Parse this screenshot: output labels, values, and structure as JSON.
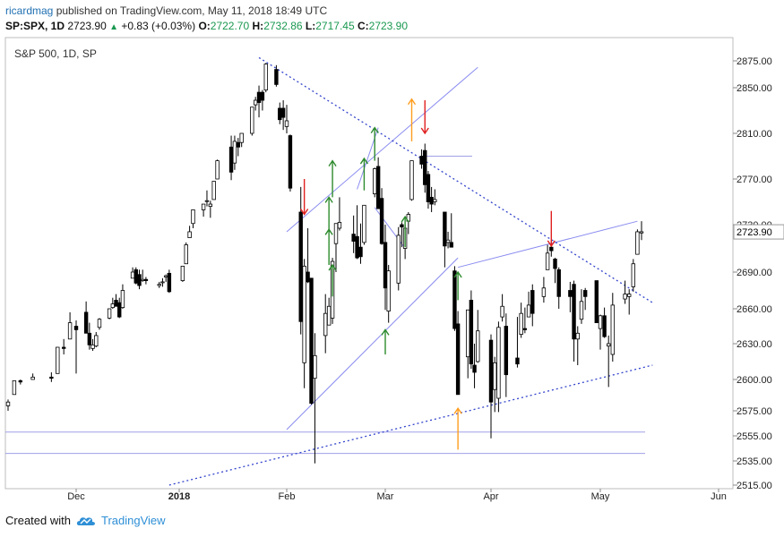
{
  "header": {
    "author": "ricardmag",
    "published": "published on TradingView.com, May 11, 2018 18:49 UTC"
  },
  "quote": {
    "symbol": "SP:SPX, 1D",
    "last": "2723.90",
    "change": "+0.83 (+0.03%)",
    "o_label": "O:",
    "o": "2722.70",
    "h_label": "H:",
    "h": "2732.86",
    "l_label": "L:",
    "l": "2717.45",
    "c_label": "C:",
    "c": "2723.90"
  },
  "footer": {
    "created_with": "Created with",
    "brand": "TradingView"
  },
  "colors": {
    "up_body": "#ffffff",
    "down_body": "#000000",
    "candle_edge": "#000000",
    "trend": "#3344cc",
    "channel": "#8a8cf0",
    "hline": "#a0a0e8",
    "arrow_up": "#2e8b2e",
    "arrow_down": "#e02020",
    "arrow_orange": "#ff9d1e",
    "grid": "#d6d6d6",
    "price_tag": "#ffffff"
  },
  "chart_data": {
    "type": "candlestick",
    "title": "S&P 500, 1D, SP",
    "ylim": [
      2515,
      2895
    ],
    "y_ticks": [
      2875,
      2850,
      2810,
      2770,
      2730,
      2690,
      2660,
      2630,
      2600,
      2575,
      2555,
      2535,
      2515
    ],
    "y_tick_labels": [
      "2875.00",
      "2850.00",
      "2810.00",
      "2770.00",
      "2730.00",
      "2690.00",
      "2660.00",
      "2630.00",
      "2600.00",
      "2575.00",
      "2555.00",
      "2535.00",
      "2515.00"
    ],
    "x_ticks": [
      {
        "label": "Dec",
        "date": "2017-12-01"
      },
      {
        "label": "2018",
        "date": "2018-01-01",
        "bold": true
      },
      {
        "label": "Feb",
        "date": "2018-02-01"
      },
      {
        "label": "Mar",
        "date": "2018-03-01"
      },
      {
        "label": "Apr",
        "date": "2018-04-02"
      },
      {
        "label": "May",
        "date": "2018-05-01"
      },
      {
        "label": "Jun",
        "date": "2018-06-01"
      }
    ],
    "last_price": "2723.90",
    "candles": [
      [
        "2017-11-20",
        2579,
        2584,
        2575,
        2582
      ],
      [
        "2017-11-21",
        2588,
        2599,
        2588,
        2599
      ],
      [
        "2017-11-22",
        2599,
        2600,
        2596,
        2598
      ],
      [
        "2017-11-24",
        2600,
        2605,
        2600,
        2602
      ],
      [
        "2017-11-27",
        2602,
        2606,
        2598,
        2601
      ],
      [
        "2017-11-28",
        2605,
        2627,
        2605,
        2627
      ],
      [
        "2017-11-29",
        2627,
        2634,
        2621,
        2626
      ],
      [
        "2017-11-30",
        2634,
        2657,
        2634,
        2648
      ],
      [
        "2017-12-01",
        2645,
        2650,
        2605,
        2642
      ],
      [
        "2017-12-04",
        2657,
        2666,
        2639,
        2639
      ],
      [
        "2017-12-05",
        2639,
        2648,
        2625,
        2629
      ],
      [
        "2017-12-06",
        2626,
        2634,
        2624,
        2629
      ],
      [
        "2017-12-07",
        2628,
        2640,
        2627,
        2637
      ],
      [
        "2017-12-08",
        2644,
        2652,
        2642,
        2651
      ],
      [
        "2017-12-11",
        2652,
        2660,
        2651,
        2660
      ],
      [
        "2017-12-12",
        2661,
        2669,
        2660,
        2664
      ],
      [
        "2017-12-13",
        2667,
        2672,
        2662,
        2662
      ],
      [
        "2017-12-14",
        2665,
        2669,
        2652,
        2653
      ],
      [
        "2017-12-15",
        2661,
        2680,
        2660,
        2675
      ],
      [
        "2017-12-18",
        2685,
        2694,
        2685,
        2690
      ],
      [
        "2017-12-19",
        2692,
        2694,
        2680,
        2681
      ],
      [
        "2017-12-20",
        2688,
        2692,
        2676,
        2679
      ],
      [
        "2017-12-21",
        2683,
        2692,
        2682,
        2684
      ],
      [
        "2017-12-22",
        2684,
        2686,
        2680,
        2683
      ],
      [
        "2017-12-26",
        2679,
        2682,
        2677,
        2680
      ],
      [
        "2017-12-27",
        2682,
        2685,
        2678,
        2682
      ],
      [
        "2017-12-28",
        2686,
        2688,
        2682,
        2687
      ],
      [
        "2017-12-29",
        2689,
        2692,
        2673,
        2674
      ],
      [
        "2018-01-02",
        2683,
        2695,
        2682,
        2695
      ],
      [
        "2018-01-03",
        2697,
        2715,
        2697,
        2713
      ],
      [
        "2018-01-04",
        2719,
        2729,
        2719,
        2724
      ],
      [
        "2018-01-05",
        2731,
        2743,
        2727,
        2743
      ],
      [
        "2018-01-08",
        2743,
        2748,
        2737,
        2748
      ],
      [
        "2018-01-09",
        2751,
        2760,
        2746,
        2751
      ],
      [
        "2018-01-10",
        2746,
        2751,
        2736,
        2748
      ],
      [
        "2018-01-11",
        2752,
        2768,
        2752,
        2768
      ],
      [
        "2018-01-12",
        2770,
        2787,
        2770,
        2786
      ],
      [
        "2018-01-16",
        2798,
        2808,
        2769,
        2776
      ],
      [
        "2018-01-17",
        2784,
        2808,
        2778,
        2803
      ],
      [
        "2018-01-18",
        2802,
        2806,
        2790,
        2798
      ],
      [
        "2018-01-19",
        2802,
        2810,
        2798,
        2810
      ],
      [
        "2018-01-22",
        2810,
        2833,
        2808,
        2833
      ],
      [
        "2018-01-23",
        2835,
        2842,
        2830,
        2839
      ],
      [
        "2018-01-24",
        2846,
        2852,
        2824,
        2837
      ],
      [
        "2018-01-25",
        2846,
        2848,
        2830,
        2839
      ],
      [
        "2018-01-26",
        2848,
        2873,
        2846,
        2872
      ],
      [
        "2018-01-29",
        2867,
        2871,
        2851,
        2853
      ],
      [
        "2018-01-30",
        2832,
        2837,
        2818,
        2822
      ],
      [
        "2018-01-31",
        2832,
        2839,
        2813,
        2824
      ],
      [
        "2018-02-01",
        2816,
        2835,
        2810,
        2821
      ],
      [
        "2018-02-02",
        2808,
        2809,
        2759,
        2762
      ],
      [
        "2018-02-05",
        2741,
        2763,
        2638,
        2649
      ],
      [
        "2018-02-06",
        2614,
        2701,
        2593,
        2695
      ],
      [
        "2018-02-07",
        2690,
        2727,
        2681,
        2682
      ],
      [
        "2018-02-08",
        2685,
        2685,
        2580,
        2581
      ],
      [
        "2018-02-09",
        2601,
        2639,
        2533,
        2620
      ],
      [
        "2018-02-12",
        2637,
        2672,
        2622,
        2656
      ],
      [
        "2018-02-13",
        2646,
        2669,
        2646,
        2662
      ],
      [
        "2018-02-14",
        2652,
        2702,
        2647,
        2699
      ],
      [
        "2018-02-15",
        2714,
        2731,
        2690,
        2731
      ],
      [
        "2018-02-16",
        2727,
        2754,
        2725,
        2732
      ],
      [
        "2018-02-20",
        2722,
        2738,
        2706,
        2716
      ],
      [
        "2018-02-21",
        2720,
        2747,
        2701,
        2702
      ],
      [
        "2018-02-22",
        2711,
        2731,
        2697,
        2703
      ],
      [
        "2018-02-23",
        2715,
        2747,
        2713,
        2747
      ],
      [
        "2018-02-26",
        2757,
        2780,
        2754,
        2779
      ],
      [
        "2018-02-27",
        2781,
        2789,
        2744,
        2744
      ],
      [
        "2018-02-28",
        2753,
        2762,
        2713,
        2714
      ],
      [
        "2018-03-01",
        2715,
        2730,
        2659,
        2677
      ],
      [
        "2018-03-02",
        2658,
        2696,
        2648,
        2691
      ],
      [
        "2018-03-05",
        2681,
        2728,
        2675,
        2721
      ],
      [
        "2018-03-06",
        2730,
        2732,
        2711,
        2728
      ],
      [
        "2018-03-07",
        2710,
        2730,
        2701,
        2727
      ],
      [
        "2018-03-08",
        2733,
        2741,
        2722,
        2739
      ],
      [
        "2018-03-09",
        2752,
        2786,
        2751,
        2786
      ],
      [
        "2018-03-12",
        2790,
        2796,
        2779,
        2783
      ],
      [
        "2018-03-13",
        2795,
        2801,
        2758,
        2765
      ],
      [
        "2018-03-14",
        2774,
        2777,
        2744,
        2750
      ],
      [
        "2018-03-15",
        2754,
        2763,
        2741,
        2748
      ],
      [
        "2018-03-16",
        2750,
        2761,
        2747,
        2752
      ],
      [
        "2018-03-19",
        2741,
        2741,
        2694,
        2712
      ],
      [
        "2018-03-20",
        2715,
        2724,
        2710,
        2717
      ],
      [
        "2018-03-21",
        2715,
        2740,
        2711,
        2711
      ],
      [
        "2018-03-22",
        2691,
        2695,
        2641,
        2643
      ],
      [
        "2018-03-23",
        2647,
        2658,
        2588,
        2588
      ],
      [
        "2018-03-26",
        2619,
        2659,
        2601,
        2659
      ],
      [
        "2018-03-27",
        2667,
        2675,
        2609,
        2613
      ],
      [
        "2018-03-28",
        2612,
        2630,
        2593,
        2606
      ],
      [
        "2018-03-29",
        2615,
        2659,
        2614,
        2641
      ],
      [
        "2018-04-02",
        2633,
        2638,
        2553,
        2582
      ],
      [
        "2018-04-03",
        2592,
        2619,
        2574,
        2614
      ],
      [
        "2018-04-04",
        2585,
        2649,
        2574,
        2644
      ],
      [
        "2018-04-05",
        2653,
        2672,
        2649,
        2662
      ],
      [
        "2018-04-06",
        2645,
        2656,
        2586,
        2604
      ],
      [
        "2018-04-09",
        2618,
        2653,
        2610,
        2613
      ],
      [
        "2018-04-10",
        2638,
        2665,
        2635,
        2656
      ],
      [
        "2018-04-11",
        2643,
        2661,
        2639,
        2642
      ],
      [
        "2018-04-12",
        2653,
        2674,
        2653,
        2663
      ],
      [
        "2018-04-13",
        2675,
        2680,
        2645,
        2656
      ],
      [
        "2018-04-16",
        2670,
        2686,
        2665,
        2677
      ],
      [
        "2018-04-17",
        2692,
        2713,
        2692,
        2706
      ],
      [
        "2018-04-18",
        2711,
        2717,
        2703,
        2708
      ],
      [
        "2018-04-19",
        2701,
        2702,
        2681,
        2693
      ],
      [
        "2018-04-20",
        2692,
        2694,
        2660,
        2670
      ],
      [
        "2018-04-23",
        2675,
        2682,
        2657,
        2670
      ],
      [
        "2018-04-24",
        2680,
        2683,
        2615,
        2634
      ],
      [
        "2018-04-25",
        2634,
        2645,
        2612,
        2639
      ],
      [
        "2018-04-26",
        2651,
        2676,
        2647,
        2666
      ],
      [
        "2018-04-27",
        2675,
        2677,
        2659,
        2670
      ],
      [
        "2018-04-30",
        2683,
        2683,
        2648,
        2648
      ],
      [
        "2018-05-01",
        2643,
        2655,
        2625,
        2654
      ],
      [
        "2018-05-02",
        2654,
        2661,
        2635,
        2636
      ],
      [
        "2018-05-03",
        2628,
        2637,
        2594,
        2630
      ],
      [
        "2018-05-04",
        2621,
        2673,
        2615,
        2663
      ],
      [
        "2018-05-07",
        2668,
        2683,
        2664,
        2672
      ],
      [
        "2018-05-08",
        2670,
        2676,
        2655,
        2672
      ],
      [
        "2018-05-09",
        2678,
        2701,
        2674,
        2697
      ],
      [
        "2018-05-10",
        2705,
        2726,
        2705,
        2724
      ],
      [
        "2018-05-11",
        2723,
        2733,
        2717,
        2724
      ]
    ]
  }
}
